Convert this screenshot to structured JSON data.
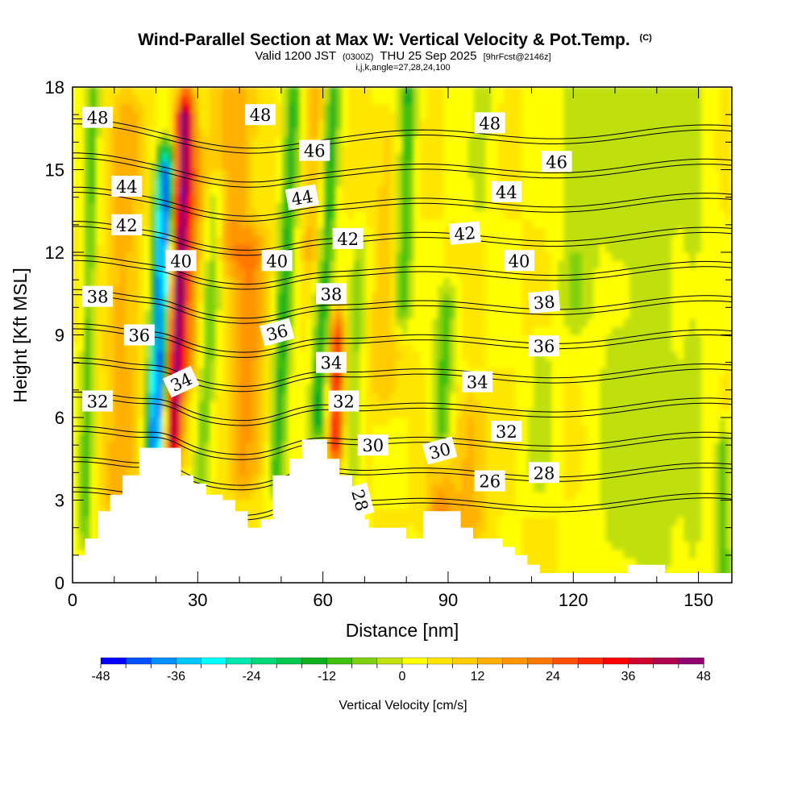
{
  "chart_data": {
    "type": "heatmap",
    "title": "Wind-Parallel Section at Max W: Vertical Velocity & Pot.Temp.",
    "title_mark": "(C)",
    "subtitle_valid": "Valid 1200 JST",
    "subtitle_utc": "(0300Z)",
    "subtitle_date": "THU 25 Sep 2025",
    "subtitle_fcst": "[9hrFcst@2146z]",
    "subtitle_indices": "i,j,k,angle=27,28,24,100",
    "xlabel": "Distance [nm]",
    "ylabel": "Height [Kft MSL]",
    "xlim": [
      0,
      158
    ],
    "ylim": [
      0,
      18
    ],
    "x_ticks": [
      0,
      30,
      60,
      90,
      120,
      150
    ],
    "x_tick_labels": [
      "0",
      "30",
      "60",
      "90",
      "120",
      "150"
    ],
    "y_ticks": [
      0,
      3,
      6,
      9,
      12,
      15,
      18
    ],
    "y_tick_labels": [
      "0",
      "3",
      "6",
      "9",
      "12",
      "15",
      "18"
    ],
    "colorbar": {
      "label": "Vertical Velocity [cm/s]",
      "min": -48,
      "max": 48,
      "step": 4,
      "tick_values": [
        -48,
        -36,
        -24,
        -12,
        0,
        12,
        24,
        36,
        48
      ],
      "tick_labels": [
        "-48",
        "-36",
        "-24",
        "-12",
        "0",
        "12",
        "24",
        "36",
        "48"
      ],
      "colors": [
        "#0000ff",
        "#0050ff",
        "#0090ff",
        "#00c8ff",
        "#00ffff",
        "#00e8b0",
        "#00d878",
        "#00c850",
        "#10b020",
        "#40c010",
        "#80d010",
        "#c0e010",
        "#ffff00",
        "#ffe600",
        "#ffcc00",
        "#ffb000",
        "#ff9600",
        "#ff7800",
        "#ff5000",
        "#ff2800",
        "#ff0000",
        "#d00030",
        "#b00050",
        "#900070",
        "#700090"
      ]
    },
    "terrain": [
      [
        0,
        1
      ],
      [
        3,
        1
      ],
      [
        3,
        1.6
      ],
      [
        6,
        1.6
      ],
      [
        6,
        2.6
      ],
      [
        9,
        2.6
      ],
      [
        9,
        3.2
      ],
      [
        12,
        3.2
      ],
      [
        12,
        3.9
      ],
      [
        16,
        3.9
      ],
      [
        16,
        4.9
      ],
      [
        26,
        4.9
      ],
      [
        26,
        3.9
      ],
      [
        29,
        3.9
      ],
      [
        29,
        3.6
      ],
      [
        32,
        3.6
      ],
      [
        32,
        3.2
      ],
      [
        36,
        3.2
      ],
      [
        36,
        3.0
      ],
      [
        39,
        3.0
      ],
      [
        39,
        2.6
      ],
      [
        42,
        2.6
      ],
      [
        42,
        2.0
      ],
      [
        45,
        2.0
      ],
      [
        45,
        2.3
      ],
      [
        48,
        2.3
      ],
      [
        48,
        3.9
      ],
      [
        52,
        3.9
      ],
      [
        52,
        4.5
      ],
      [
        55,
        4.5
      ],
      [
        55,
        5.2
      ],
      [
        61,
        5.2
      ],
      [
        61,
        4.5
      ],
      [
        64,
        4.5
      ],
      [
        64,
        3.9
      ],
      [
        67,
        3.9
      ],
      [
        67,
        3.2
      ],
      [
        70,
        3.2
      ],
      [
        70,
        2.3
      ],
      [
        71,
        2.3
      ],
      [
        71,
        2.0
      ],
      [
        80,
        2.0
      ],
      [
        80,
        1.6
      ],
      [
        84,
        1.6
      ],
      [
        84,
        2.6
      ],
      [
        93,
        2.6
      ],
      [
        93,
        2.0
      ],
      [
        96,
        2.0
      ],
      [
        96,
        1.6
      ],
      [
        103,
        1.6
      ],
      [
        103,
        1.3
      ],
      [
        106,
        1.3
      ],
      [
        106,
        1.0
      ],
      [
        109,
        1.0
      ],
      [
        109,
        0.65
      ],
      [
        112,
        0.65
      ],
      [
        112,
        0.35
      ],
      [
        133,
        0.35
      ],
      [
        133,
        0.65
      ],
      [
        142,
        0.65
      ],
      [
        142,
        0.35
      ],
      [
        158,
        0.35
      ]
    ],
    "w_features": [
      {
        "x": 3,
        "z_bottom": 2,
        "z_top": 18,
        "amp": -14,
        "width": 1.5,
        "tilt": 0.12
      },
      {
        "x": 11,
        "z_bottom": 3,
        "z_top": 17,
        "amp": 10,
        "width": 4,
        "tilt": 0.15
      },
      {
        "x": 20,
        "z_bottom": 5,
        "z_top": 15,
        "amp": -46,
        "width": 2.2,
        "tilt": 0.25
      },
      {
        "x": 24,
        "z_bottom": 5,
        "z_top": 17,
        "amp": 42,
        "width": 2.2,
        "tilt": 0.25
      },
      {
        "x": 28,
        "z_bottom": 8,
        "z_top": 15,
        "amp": 12,
        "width": 2.5,
        "tilt": 0.2
      },
      {
        "x": 31,
        "z_bottom": 4,
        "z_top": 14,
        "amp": -12,
        "width": 2.0,
        "tilt": 0.35
      },
      {
        "x": 41,
        "z_bottom": 4,
        "z_top": 12,
        "amp": 14,
        "width": 4,
        "tilt": 0.3
      },
      {
        "x": 38,
        "z_bottom": 12,
        "z_top": 18,
        "amp": 12,
        "width": 5,
        "tilt": 0.2
      },
      {
        "x": 49,
        "z_bottom": 4,
        "z_top": 18,
        "amp": -18,
        "width": 2.0,
        "tilt": 0.3
      },
      {
        "x": 59,
        "z_bottom": 6,
        "z_top": 18,
        "amp": -20,
        "width": 2.0,
        "tilt": 0.3
      },
      {
        "x": 63,
        "z_bottom": 5,
        "z_top": 9,
        "amp": 28,
        "width": 1.8,
        "tilt": 0.1
      },
      {
        "x": 58,
        "z_bottom": 12,
        "z_top": 18,
        "amp": 10,
        "width": 3,
        "tilt": 0.1
      },
      {
        "x": 67,
        "z_bottom": 4,
        "z_top": 12,
        "amp": -8,
        "width": 2.0,
        "tilt": 0.25
      },
      {
        "x": 75,
        "z_bottom": 7,
        "z_top": 16,
        "amp": 7,
        "width": 4,
        "tilt": 0.2
      },
      {
        "x": 79,
        "z_bottom": 10,
        "z_top": 18,
        "amp": -18,
        "width": 2.2,
        "tilt": 0.2
      },
      {
        "x": 88,
        "z_bottom": 4,
        "z_top": 10,
        "amp": -14,
        "width": 2.2,
        "tilt": 0.3
      },
      {
        "x": 88,
        "z_bottom": 2.6,
        "z_top": 4,
        "amp": 18,
        "width": 3,
        "tilt": 0
      },
      {
        "x": 95,
        "z_bottom": 2,
        "z_top": 6,
        "amp": 10,
        "width": 4,
        "tilt": 0.1
      },
      {
        "x": 98,
        "z_bottom": 14,
        "z_top": 18,
        "amp": -6,
        "width": 3,
        "tilt": 0.1
      },
      {
        "x": 112,
        "z_bottom": 4,
        "z_top": 8,
        "amp": -6,
        "width": 3,
        "tilt": 0.1
      },
      {
        "x": 120,
        "z_bottom": 10,
        "z_top": 18,
        "amp": -7,
        "width": 4,
        "tilt": 0.1
      },
      {
        "x": 130,
        "z_bottom": 1,
        "z_top": 18,
        "amp": -5,
        "width": 6,
        "tilt": 0
      },
      {
        "x": 140,
        "z_bottom": 1,
        "z_top": 18,
        "amp": -6,
        "width": 5,
        "tilt": 0
      },
      {
        "x": 149,
        "z_bottom": 1,
        "z_top": 18,
        "amp": -5,
        "width": 4,
        "tilt": 0
      },
      {
        "x": 156,
        "z_bottom": 0,
        "z_top": 5,
        "amp": -14,
        "width": 1.5,
        "tilt": 0
      }
    ],
    "theta_contours": [
      26,
      28,
      30,
      32,
      34,
      36,
      38,
      40,
      42,
      44,
      46,
      48
    ],
    "theta_contour_labels": [
      {
        "text": "48",
        "x": 6,
        "z": 16.9,
        "angle": 0
      },
      {
        "text": "44",
        "x": 13,
        "z": 14.4,
        "angle": 0
      },
      {
        "text": "42",
        "x": 13,
        "z": 13.0,
        "angle": 0
      },
      {
        "text": "38",
        "x": 6,
        "z": 10.4,
        "angle": 0
      },
      {
        "text": "36",
        "x": 16,
        "z": 9.0,
        "angle": 0
      },
      {
        "text": "32",
        "x": 6,
        "z": 6.6,
        "angle": 0
      },
      {
        "text": "40",
        "x": 26,
        "z": 11.7,
        "angle": 0
      },
      {
        "text": "34",
        "x": 26,
        "z": 7.3,
        "angle": -25
      },
      {
        "text": "48",
        "x": 45,
        "z": 17.0,
        "angle": 0
      },
      {
        "text": "46",
        "x": 58,
        "z": 15.7,
        "angle": 0
      },
      {
        "text": "44",
        "x": 55,
        "z": 14.0,
        "angle": -10
      },
      {
        "text": "40",
        "x": 49,
        "z": 11.7,
        "angle": 0
      },
      {
        "text": "36",
        "x": 49,
        "z": 9.1,
        "angle": -15
      },
      {
        "text": "42",
        "x": 66,
        "z": 12.5,
        "angle": 0
      },
      {
        "text": "38",
        "x": 62,
        "z": 10.5,
        "angle": 0
      },
      {
        "text": "34",
        "x": 62,
        "z": 8.0,
        "angle": 0
      },
      {
        "text": "32",
        "x": 65,
        "z": 6.6,
        "angle": 0
      },
      {
        "text": "30",
        "x": 72,
        "z": 5.0,
        "angle": 0
      },
      {
        "text": "28",
        "x": 69,
        "z": 3.0,
        "angle": 75
      },
      {
        "text": "48",
        "x": 100,
        "z": 16.7,
        "angle": 0
      },
      {
        "text": "46",
        "x": 116,
        "z": 15.3,
        "angle": 0
      },
      {
        "text": "44",
        "x": 104,
        "z": 14.2,
        "angle": 0
      },
      {
        "text": "42",
        "x": 94,
        "z": 12.7,
        "angle": -5
      },
      {
        "text": "40",
        "x": 107,
        "z": 11.7,
        "angle": 0
      },
      {
        "text": "38",
        "x": 113,
        "z": 10.2,
        "angle": -5
      },
      {
        "text": "36",
        "x": 113,
        "z": 8.6,
        "angle": 0
      },
      {
        "text": "34",
        "x": 97,
        "z": 7.3,
        "angle": 0
      },
      {
        "text": "32",
        "x": 104,
        "z": 5.5,
        "angle": 0
      },
      {
        "text": "30",
        "x": 88,
        "z": 4.8,
        "angle": -15
      },
      {
        "text": "26",
        "x": 100,
        "z": 3.7,
        "angle": 0
      },
      {
        "text": "28",
        "x": 113,
        "z": 4.0,
        "angle": 0
      }
    ]
  }
}
